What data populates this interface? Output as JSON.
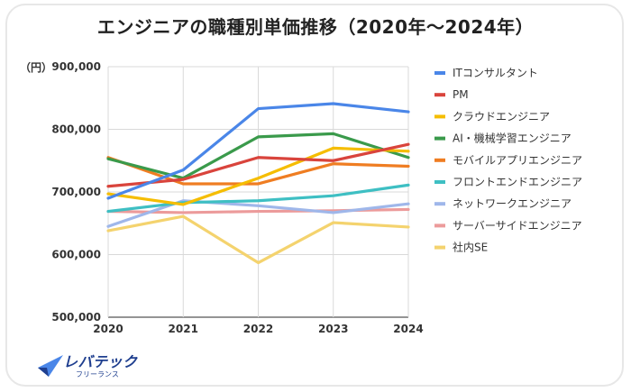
{
  "chart_data": {
    "type": "line",
    "title": "エンジニアの職種別単価推移（2020年〜2024年）",
    "unit_label": "（円）",
    "x": [
      "2020",
      "2021",
      "2022",
      "2023",
      "2024"
    ],
    "ylim": [
      500000,
      900000
    ],
    "yticks": [
      "500,000",
      "600,000",
      "700,000",
      "800,000",
      "900,000"
    ],
    "ytick_values": [
      500000,
      600000,
      700000,
      800000,
      900000
    ],
    "grid": true,
    "legend_position": "right",
    "series": [
      {
        "name": "ITコンサルタント",
        "color": "#4a86e8",
        "values": [
          690000,
          735000,
          833000,
          841000,
          828000
        ]
      },
      {
        "name": "PM",
        "color": "#d9443c",
        "values": [
          709000,
          720000,
          755000,
          750000,
          776000
        ]
      },
      {
        "name": "クラウドエンジニア",
        "color": "#f5bd00",
        "values": [
          697000,
          680000,
          722000,
          770000,
          765000
        ]
      },
      {
        "name": "AI・機械学習エンジニア",
        "color": "#3a9a4b",
        "values": [
          753000,
          722000,
          788000,
          793000,
          755000
        ]
      },
      {
        "name": "モバイルアプリエンジニア",
        "color": "#ef7d22",
        "values": [
          755000,
          713000,
          713000,
          745000,
          741000
        ]
      },
      {
        "name": "フロントエンドエンジニア",
        "color": "#3ebfc3",
        "values": [
          669000,
          683000,
          686000,
          694000,
          711000
        ]
      },
      {
        "name": "ネットワークエンジニア",
        "color": "#9fb7ea",
        "values": [
          645000,
          686000,
          678000,
          667000,
          681000
        ]
      },
      {
        "name": "サーバーサイドエンジニア",
        "color": "#ec9b9b",
        "values": [
          669000,
          667000,
          669000,
          670000,
          672000
        ]
      },
      {
        "name": "社内SE",
        "color": "#f4d36e",
        "values": [
          638000,
          661000,
          587000,
          651000,
          644000
        ]
      }
    ]
  },
  "logo": {
    "main": "レバテック",
    "sub": "フリーランス"
  }
}
